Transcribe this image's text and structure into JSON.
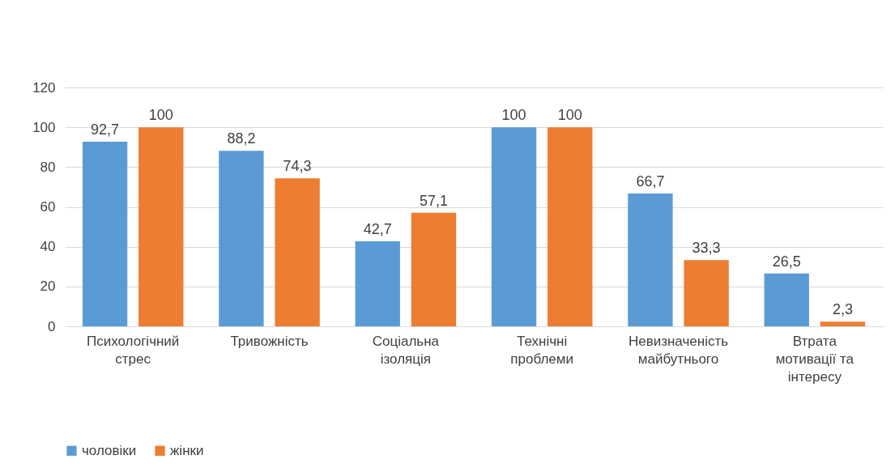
{
  "chart_data": {
    "type": "bar",
    "categories": [
      "Психологічний стрес",
      "Тривожність",
      "Соціальна ізоляція",
      "Технічні проблеми",
      "Невизначеність майбутнього",
      "Втрата мотивації та інтересу"
    ],
    "series": [
      {
        "name": "чоловіки",
        "color": "#5b9bd5",
        "values": [
          92.7,
          88.2,
          42.7,
          100,
          66.7,
          26.5
        ],
        "value_labels": [
          "92,7",
          "88,2",
          "42,7",
          "100",
          "66,7",
          "26,5"
        ]
      },
      {
        "name": "жінки",
        "color": "#ed7d31",
        "values": [
          100,
          74.3,
          57.1,
          100,
          33.3,
          2.3
        ],
        "value_labels": [
          "100",
          "74,3",
          "57,1",
          "100",
          "33,3",
          "2,3"
        ]
      }
    ],
    "ylim": [
      0,
      120
    ],
    "yticks": [
      0,
      20,
      40,
      60,
      80,
      100,
      120
    ],
    "grid": "y",
    "legend": "bottom"
  }
}
